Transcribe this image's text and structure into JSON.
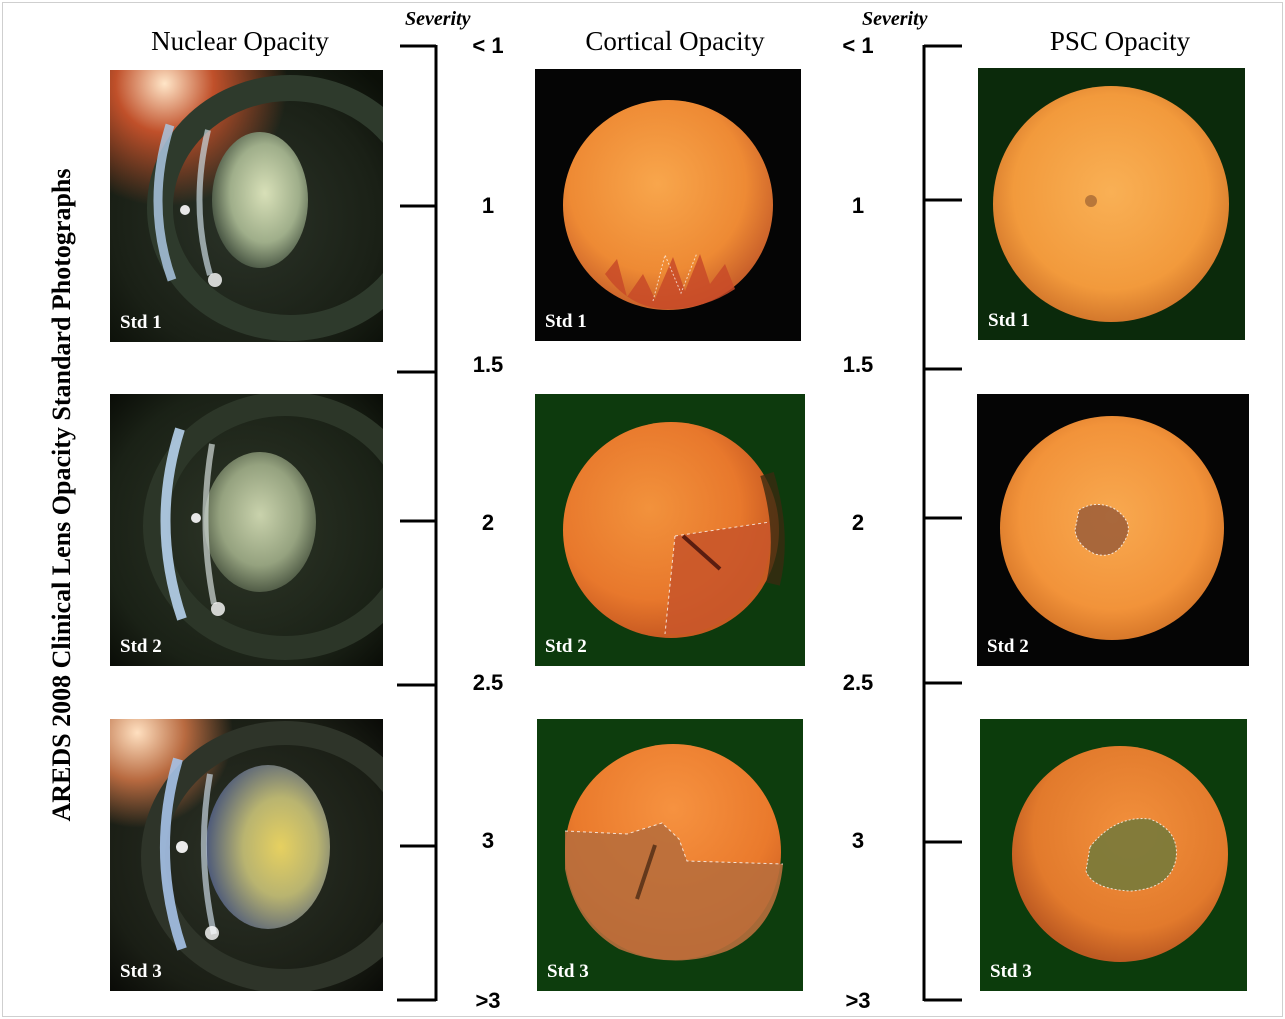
{
  "figure_title": "AREDS 2008 Clinical Lens Opacity Standard Photographs",
  "severity_label": "Severity",
  "columns": [
    {
      "heading": "Nuclear Opacity"
    },
    {
      "heading": "Cortical Opacity"
    },
    {
      "heading": "PSC Opacity"
    }
  ],
  "scale": [
    "< 1",
    "1",
    "1.5",
    "2",
    "2.5",
    "3",
    ">3"
  ],
  "std_labels": [
    "Std 1",
    "Std 2",
    "Std 3"
  ]
}
